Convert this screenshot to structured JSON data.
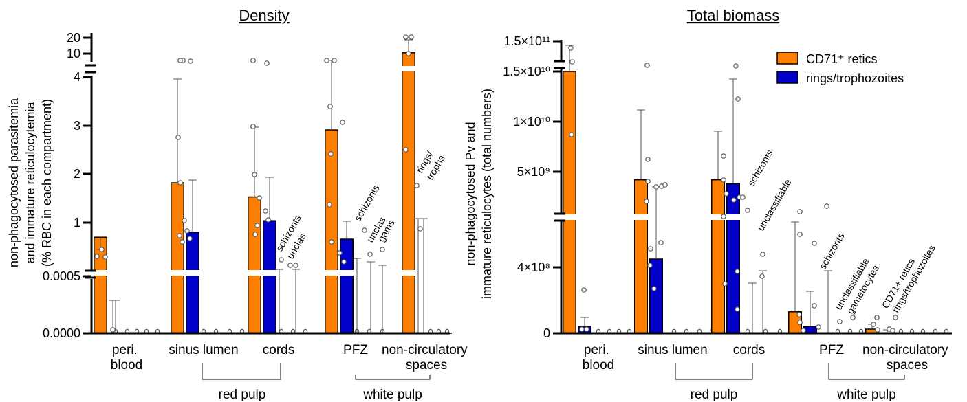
{
  "colors": {
    "retics": "#FF8000",
    "rings": "#0000C8",
    "other": "#7a7a7a"
  },
  "group_labels": {
    "red_pulp": "red pulp",
    "white_pulp": "white pulp"
  },
  "chart_data": [
    {
      "type": "bar",
      "title": "Density",
      "ylabel": [
        "non-phagocytosed parasitemia",
        "and immature reticulocytemia",
        "(% RBC in each compartment)"
      ],
      "axis_segments": [
        {
          "ylim": [
            0,
            0.001
          ],
          "ticks": [
            0,
            0.0005
          ],
          "tick_labels": [
            "0.0000",
            "0.0005"
          ]
        },
        {
          "ylim": [
            0.5,
            4
          ],
          "ticks": [
            1,
            2,
            3,
            4
          ],
          "tick_labels": [
            "1",
            "2",
            "3",
            "4"
          ]
        },
        {
          "ylim": [
            8,
            22
          ],
          "ticks": [
            10,
            20
          ],
          "tick_labels": [
            "10",
            "20"
          ]
        }
      ],
      "categories": [
        "peri.\nblood",
        "sinus lumen",
        "cords",
        "PFZ",
        "non-circulatory\nspaces"
      ],
      "series": [
        {
          "name": "CD71⁺ retics",
          "color_key": "retics",
          "values": [
            0.7,
            1.82,
            1.53,
            2.91,
            10.5
          ],
          "errors": [
            0.04,
            2.1,
            1.45,
            1.9,
            12
          ]
        },
        {
          "name": "rings/trophozoites",
          "color_key": "rings",
          "values": [
            0,
            0.8,
            1.04,
            0.66,
            0
          ],
          "errors": [
            0.0003,
            1.1,
            0.9,
            0.4,
            0
          ]
        }
      ],
      "annotations": [
        "schizonts",
        "unclas",
        "schizonts",
        "unclas",
        "gams",
        "rings/",
        "trophs"
      ],
      "legend": "none"
    },
    {
      "type": "bar",
      "title": "Total biomass",
      "ylabel": [
        "non-phagocytosed Pv and",
        "immature reticulocytes (total numbers)"
      ],
      "axis_segments": [
        {
          "ylim": [
            0,
            1000000000
          ],
          "ticks": [
            0,
            400000000
          ],
          "tick_labels": [
            "0",
            "4×10⁸"
          ]
        },
        {
          "ylim": [
            2000000000,
            15000000000
          ],
          "ticks": [
            5000000000,
            10000000000,
            15000000000
          ],
          "tick_labels": [
            "5×10⁹",
            "1×10¹⁰",
            "1.5×10¹⁰"
          ]
        },
        {
          "ylim": [
            140000000000,
            150000000000
          ],
          "ticks": [
            150000000000
          ],
          "tick_labels": [
            "1.5×10¹¹"
          ]
        }
      ],
      "categories": [
        "peri.\nblood",
        "sinus lumen",
        "cords",
        "PFZ",
        "non-circulatory\nspaces"
      ],
      "series": [
        {
          "name": "CD71⁺ retics",
          "color_key": "retics",
          "values": [
            15000000000,
            4200000000,
            4200000000,
            130000000,
            25000000
          ],
          "errors": [
            0,
            6800000000,
            4700000000,
            500000000,
            15000000
          ]
        },
        {
          "name": "rings/trophozoites",
          "color_key": "rings",
          "values": [
            42000000,
            450000000,
            3800000000,
            40000000,
            0
          ],
          "errors": [
            50000000,
            4400000000,
            10500000000,
            210000000,
            0
          ]
        }
      ],
      "annotations": [
        "schizonts",
        "unclassifiable",
        "schizonts",
        "unclassifiable",
        "gametocytes",
        "CD71+ retics",
        "rings/trophozoites"
      ],
      "legend": "top-right",
      "legend_entries": [
        "CD71⁺ retics",
        "rings/trophozoites"
      ]
    }
  ]
}
